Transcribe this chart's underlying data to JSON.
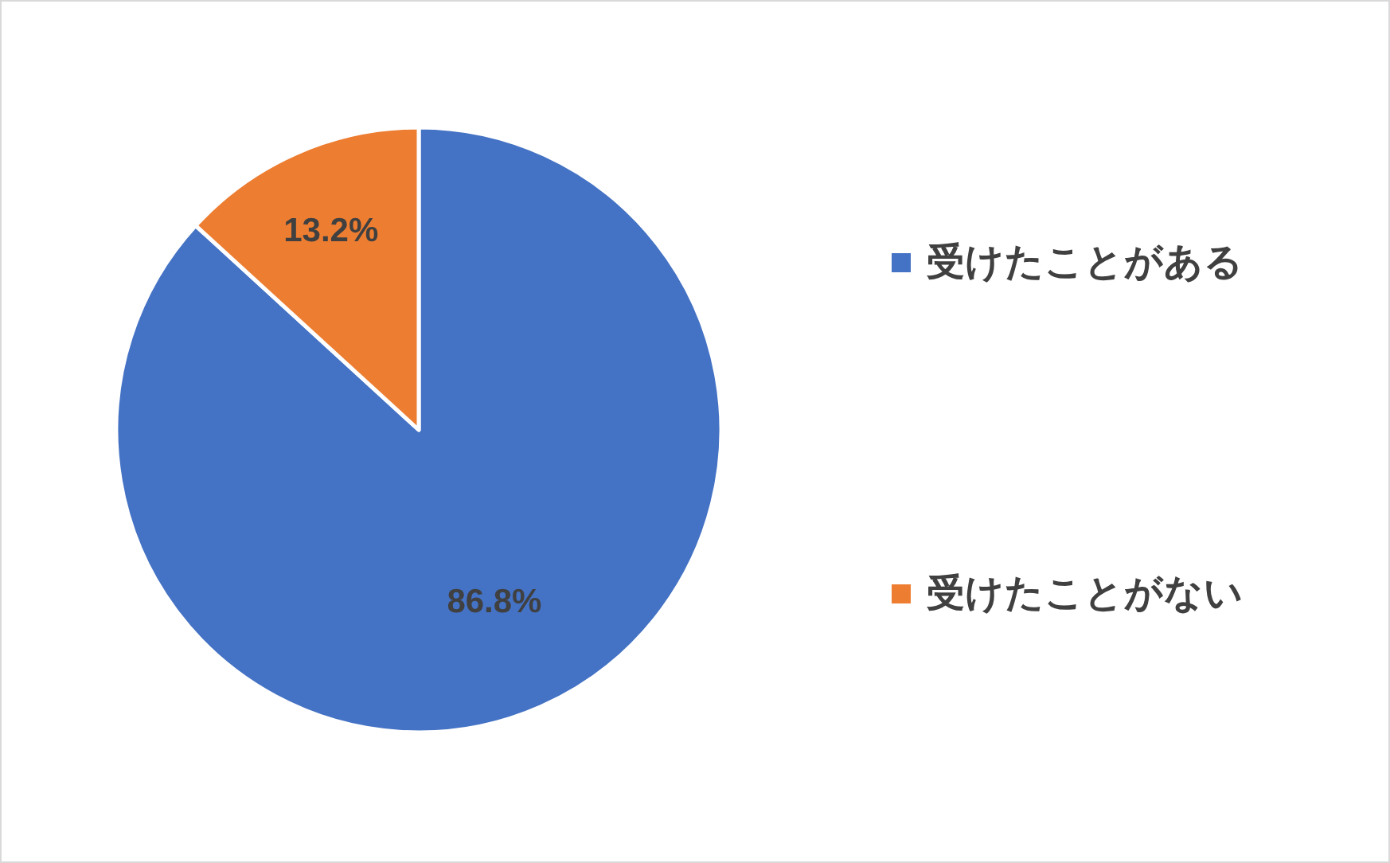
{
  "chart_data": {
    "type": "pie",
    "categories": [
      "受けたことがある",
      "受けたことがない"
    ],
    "values": [
      86.8,
      13.2
    ],
    "colors": [
      "#4472c4",
      "#ed7d31"
    ],
    "value_labels": [
      "86.8%",
      "13.2%"
    ],
    "legend": "right"
  }
}
